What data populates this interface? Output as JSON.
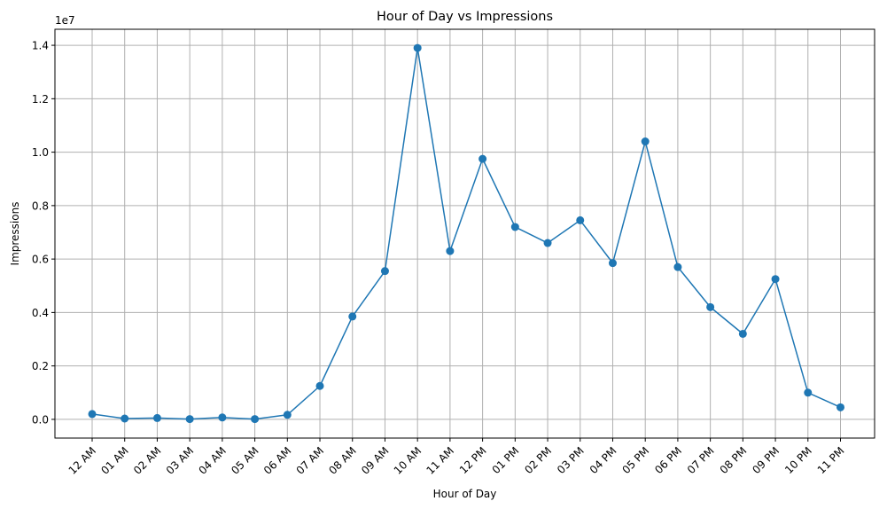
{
  "chart_data": {
    "type": "line",
    "title": "Hour of Day vs Impressions",
    "xlabel": "Hour of Day",
    "ylabel": "Impressions",
    "y_offset_label": "1e7",
    "categories": [
      "12 AM",
      "01 AM",
      "02 AM",
      "03 AM",
      "04 AM",
      "05 AM",
      "06 AM",
      "07 AM",
      "08 AM",
      "09 AM",
      "10 AM",
      "11 AM",
      "12 PM",
      "01 PM",
      "02 PM",
      "03 PM",
      "04 PM",
      "05 PM",
      "06 PM",
      "07 PM",
      "08 PM",
      "09 PM",
      "10 PM",
      "11 PM"
    ],
    "series": [
      {
        "values": [
          200000,
          30000,
          50000,
          10000,
          70000,
          10000,
          170000,
          1250000,
          3850000,
          5550000,
          13900000,
          6300000,
          9750000,
          7200000,
          6600000,
          7450000,
          5850000,
          10400000,
          5700000,
          4200000,
          3200000,
          5250000,
          1000000,
          450000
        ],
        "color": "#1f77b4"
      }
    ],
    "ylim": [
      -700000,
      14600000
    ],
    "y_ticks": [
      0,
      2000000,
      4000000,
      6000000,
      8000000,
      10000000,
      12000000,
      14000000
    ],
    "y_tick_labels": [
      "0.0",
      "0.2",
      "0.4",
      "0.6",
      "0.8",
      "1.0",
      "1.2",
      "1.4"
    ],
    "grid": true,
    "x_tick_rotation": 45
  }
}
